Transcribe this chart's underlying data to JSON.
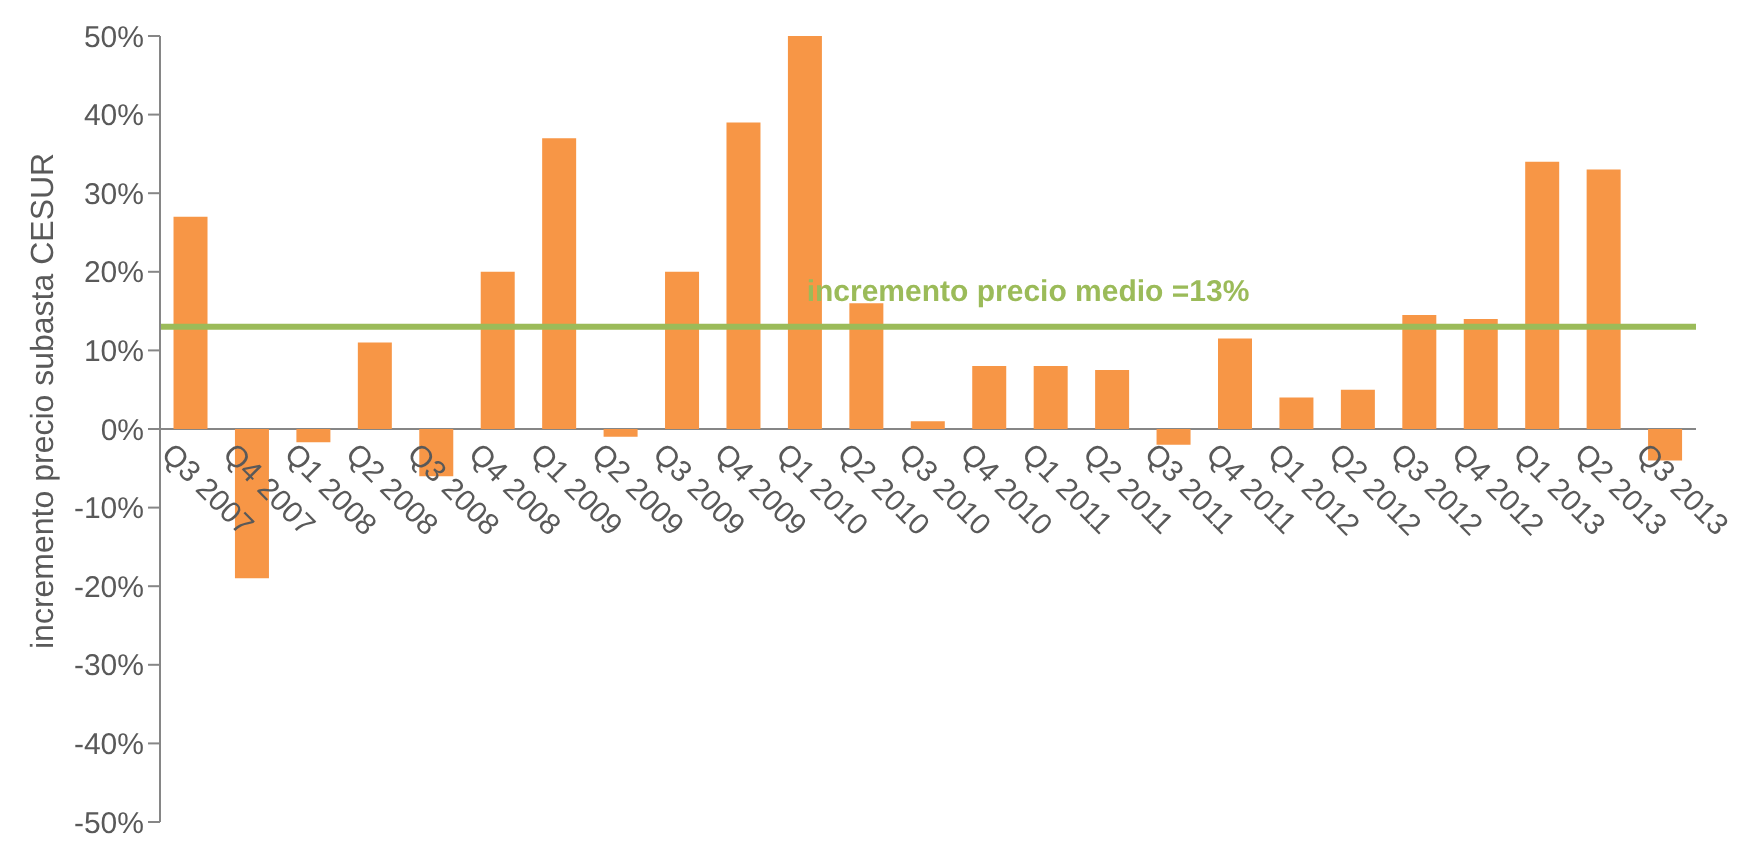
{
  "chart_data": {
    "type": "bar",
    "ylabel": "incremento precio subasta CESUR",
    "categories": [
      "Q3 2007",
      "Q4 2007",
      "Q1 2008",
      "Q2 2008",
      "Q3 2008",
      "Q4 2008",
      "Q1 2009",
      "Q2 2009",
      "Q3 2009",
      "Q4 2009",
      "Q1 2010",
      "Q2 2010",
      "Q3 2010",
      "Q4 2010",
      "Q1 2011",
      "Q2 2011",
      "Q3 2011",
      "Q4 2011",
      "Q1 2012",
      "Q2 2012",
      "Q3 2012",
      "Q4 2012",
      "Q1 2013",
      "Q2 2013",
      "Q3 2013"
    ],
    "values": [
      27,
      -19,
      -1.7,
      11,
      -6,
      20,
      37,
      -1,
      20,
      39,
      50,
      16,
      1,
      8,
      8,
      7.5,
      -2,
      11.5,
      4,
      5,
      14.5,
      14,
      34,
      33,
      -4
    ],
    "color": "#f79646",
    "ylim": [
      -50,
      50
    ],
    "yticks": [
      {
        "value": -50,
        "label": "-50%"
      },
      {
        "value": -40,
        "label": "-40%"
      },
      {
        "value": -30,
        "label": "-30%"
      },
      {
        "value": -20,
        "label": "-20%"
      },
      {
        "value": -10,
        "label": "-10%"
      },
      {
        "value": 0,
        "label": "0%"
      },
      {
        "value": 10,
        "label": "10%"
      },
      {
        "value": 20,
        "label": "20%"
      },
      {
        "value": 30,
        "label": "30%"
      },
      {
        "value": 40,
        "label": "40%"
      },
      {
        "value": 50,
        "label": "50%"
      }
    ],
    "ref_lines": [
      {
        "axis": "y",
        "value": 13,
        "label": "incremento precio medio  =13%",
        "color": "#9bbb59"
      }
    ],
    "grid": false,
    "legend": false
  }
}
